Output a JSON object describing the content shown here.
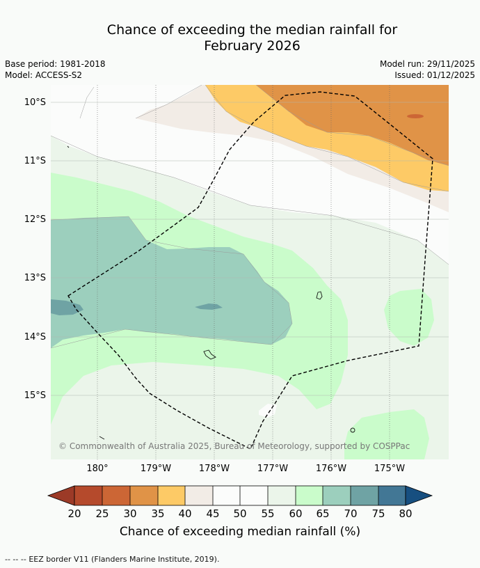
{
  "title": {
    "line1": "Chance of exceeding the median rainfall for",
    "line2": "February 2026"
  },
  "meta": {
    "base_period": "Base period: 1981-2018",
    "model": "Model: ACCESS-S2",
    "model_run": "Model run: 29/11/2025",
    "issued": "Issued: 01/12/2025"
  },
  "map": {
    "lat_labels": [
      "10°S",
      "11°S",
      "12°S",
      "13°S",
      "14°S",
      "15°S"
    ],
    "lon_labels": [
      "180°",
      "179°W",
      "178°W",
      "177°W",
      "176°W",
      "175°W"
    ],
    "copyright": "© Commonwealth of Australia 2025, Bureau of Meteorology, supported by COSPPac"
  },
  "colorbar": {
    "ticks": [
      "20",
      "25",
      "30",
      "35",
      "40",
      "45",
      "50",
      "55",
      "60",
      "65",
      "70",
      "75",
      "80"
    ],
    "colors": {
      "below20": "#9c3a27",
      "20_25": "#b54a2c",
      "25_30": "#cc6635",
      "30_35": "#e09347",
      "35_40": "#fdca66",
      "40_45": "#f2ece6",
      "45_50": "#fbfcfb",
      "50_55": "#fbfcfb",
      "55_60": "#ebf5ea",
      "60_65": "#cafccb",
      "65_70": "#9ccfbd",
      "70_75": "#6fa3a4",
      "75_80": "#427795",
      "above80": "#174f80"
    },
    "label": "Chance of exceeding median rainfall (%)"
  },
  "footer": {
    "legend_symbol": "--  --  --",
    "text": "EEZ border V11 (Flanders Marine Institute, 2019)."
  }
}
